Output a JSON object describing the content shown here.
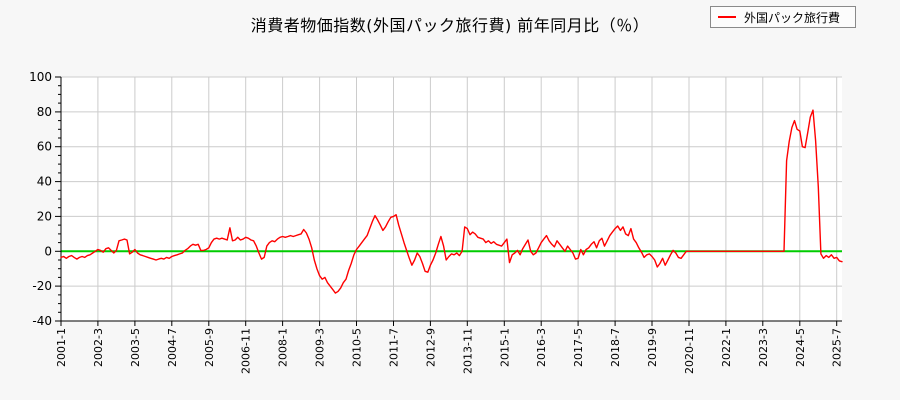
{
  "page": {
    "background": "#f7f7f7"
  },
  "header": {
    "title": "消費者物価指数(外国パック旅行費) 前年同月比（％）"
  },
  "legend": {
    "label": "外国パック旅行費",
    "line_color": "#ff0000"
  },
  "chart_data": {
    "type": "line",
    "title": "消費者物価指数(外国パック旅行費) 前年同月比（％）",
    "ylabel": "",
    "xlabel": "",
    "ylim": [
      -40,
      100
    ],
    "y_ticks": [
      -40,
      -20,
      0,
      20,
      40,
      60,
      80,
      100
    ],
    "y_minor_step": 5,
    "grid": true,
    "legend_position": "top-right",
    "zero_line_color": "#00cc00",
    "grid_color": "#cccccc",
    "axis_color": "#000000",
    "plot_bg": "#ffffff",
    "x_start": "2001-1",
    "x_frequency": "monthly",
    "x_tick_step": 14,
    "x_tick_labels": [
      "2001-1",
      "2002-3",
      "2003-5",
      "2004-7",
      "2005-9",
      "2006-11",
      "2008-1",
      "2009-3",
      "2010-5",
      "2011-7",
      "2012-9",
      "2013-11",
      "2015-1",
      "2016-3",
      "2017-5",
      "2018-7",
      "2019-9",
      "2020-11",
      "2022-1",
      "2023-3",
      "2024-5",
      "2025-7"
    ],
    "series": [
      {
        "name": "外国パック旅行費",
        "color": "#ff0000",
        "values": [
          -3.5,
          -3,
          -4,
          -3,
          -2.5,
          -3.5,
          -4.5,
          -3.5,
          -3,
          -3.5,
          -2.5,
          -2,
          -1,
          0,
          1,
          0.5,
          -0.5,
          1.5,
          2,
          0.5,
          -1,
          0.5,
          6,
          6.5,
          7,
          6.5,
          -1.5,
          -0.5,
          1,
          -1,
          -2,
          -2.5,
          -3,
          -3.5,
          -4,
          -4.5,
          -5,
          -4.5,
          -4,
          -4.5,
          -3.5,
          -4,
          -3,
          -2.5,
          -2,
          -1.5,
          -1,
          0.5,
          1.5,
          3,
          4,
          3.5,
          4,
          0.5,
          0.5,
          1,
          2,
          5,
          7,
          7.5,
          7,
          7.5,
          7,
          6.5,
          13.5,
          6,
          6.5,
          8,
          6.5,
          7,
          8,
          7.5,
          6.5,
          6,
          3,
          -1,
          -4.5,
          -3.5,
          3,
          5,
          6,
          5.5,
          7,
          8,
          8.5,
          8,
          8.5,
          9,
          8.5,
          9,
          9.5,
          10,
          12.5,
          10.5,
          7,
          2,
          -5,
          -10,
          -14,
          -16,
          -15,
          -18,
          -20,
          -22,
          -24,
          -23,
          -21,
          -18,
          -16,
          -11,
          -7,
          -2,
          1,
          3,
          5,
          7,
          9,
          13,
          17,
          20.5,
          18,
          15,
          12,
          14,
          17,
          19.5,
          20,
          21,
          15,
          10,
          5,
          0.5,
          -4,
          -8,
          -5,
          -1,
          -3,
          -7,
          -11.5,
          -12,
          -8,
          -5,
          -1,
          4,
          8.5,
          3,
          -5,
          -3,
          -1.5,
          -2,
          -1,
          -2.5,
          0,
          14,
          13,
          9.5,
          11,
          10,
          8,
          7.5,
          7,
          5,
          6,
          4.5,
          5.5,
          4,
          3.5,
          3,
          5,
          7,
          -6.5,
          -2,
          -1,
          0.5,
          -2,
          1.5,
          4,
          6.5,
          0,
          -2,
          -1,
          2,
          5,
          7,
          9,
          6,
          4,
          2.5,
          6,
          4,
          2,
          0,
          3,
          1,
          -1,
          -4.5,
          -4,
          1,
          -2,
          1,
          2,
          4,
          5.5,
          2,
          6,
          7.5,
          3,
          6,
          9,
          11,
          13,
          14.5,
          12,
          14,
          10,
          9,
          13,
          7,
          5,
          2,
          -0.5,
          -3.5,
          -2,
          -1.5,
          -3,
          -5,
          -9,
          -7,
          -4,
          -8,
          -5,
          -2,
          0.5,
          -1,
          -3.5,
          -4,
          -2,
          0,
          0,
          0,
          0,
          0,
          0,
          0,
          0,
          0,
          0,
          0,
          0,
          0,
          0,
          0,
          0,
          0,
          0,
          0,
          0,
          0,
          0,
          0,
          0,
          0,
          0,
          0,
          0,
          0,
          0,
          0,
          0,
          0,
          0,
          0,
          0,
          0,
          0,
          52,
          63,
          71,
          75,
          70,
          69,
          60,
          59.5,
          68,
          77,
          81,
          63.5,
          37,
          -1.5,
          -4,
          -2.5,
          -3.5,
          -2,
          -4,
          -3.5,
          -5.5,
          -6
        ]
      }
    ]
  }
}
